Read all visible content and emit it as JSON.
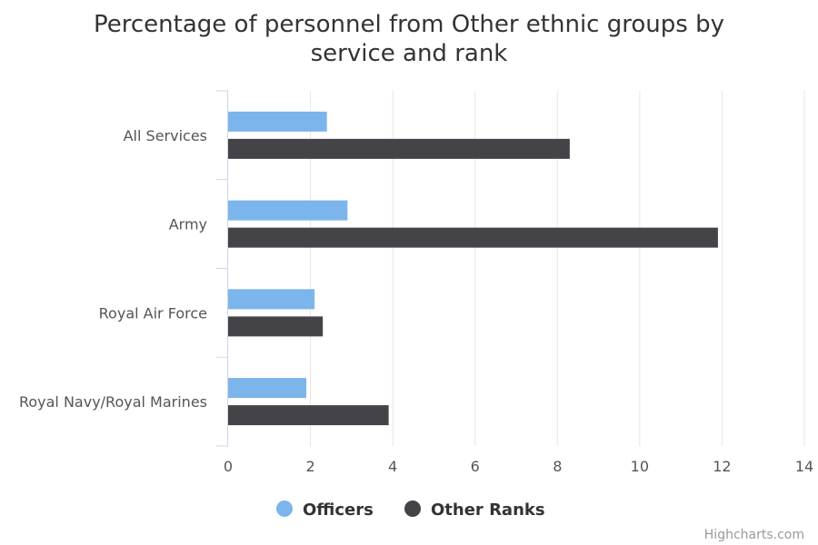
{
  "chart_data": {
    "type": "bar",
    "orientation": "horizontal",
    "title": "Percentage of personnel from Other ethnic groups by service and rank",
    "title_lines": [
      "Percentage of personnel from Other ethnic groups by",
      "service and rank"
    ],
    "categories": [
      "All Services",
      "Army",
      "Royal Air Force",
      "Royal Navy/Royal Marines"
    ],
    "series": [
      {
        "name": "Officers",
        "color": "#7cb5ec",
        "values": [
          2.4,
          2.9,
          2.1,
          1.9
        ]
      },
      {
        "name": "Other Ranks",
        "color": "#434348",
        "values": [
          8.3,
          11.9,
          2.3,
          3.9
        ]
      }
    ],
    "xlim": [
      0,
      14
    ],
    "ticks": [
      "0",
      "2",
      "4",
      "6",
      "8",
      "10",
      "12",
      "14"
    ],
    "grid": true,
    "legend_position": "bottom-center"
  },
  "credit": "Highcharts.com"
}
